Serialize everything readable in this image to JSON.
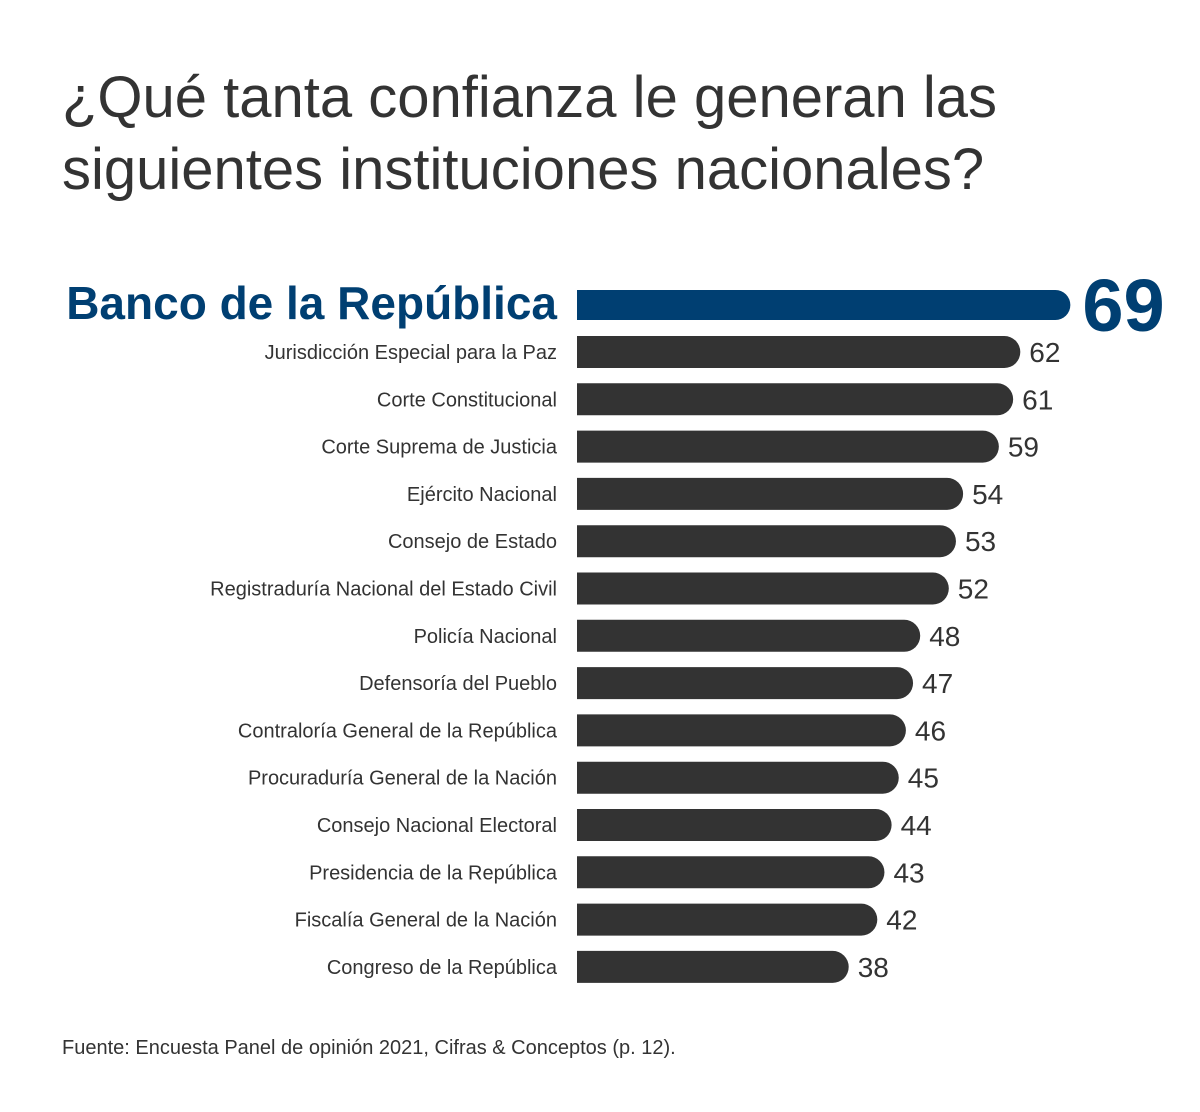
{
  "title": "¿Qué tanta confianza le generan las siguientes instituciones nacionales?",
  "source": "Fuente: Encuesta Panel de opinión 2021, Cifras & Conceptos (p. 12).",
  "colors": {
    "highlight": "#003f72",
    "bar": "#333333",
    "text": "#333333"
  },
  "chart_data": {
    "type": "bar",
    "orientation": "horizontal",
    "highlight_index": 0,
    "categories": [
      "Banco de la República",
      "Jurisdicción Especial para la Paz",
      "Corte Constitucional",
      "Corte Suprema de Justicia",
      "Ejército Nacional",
      "Consejo de Estado",
      "Registraduría Nacional del Estado Civil",
      "Policía Nacional",
      "Defensoría del Pueblo",
      "Contraloría General de la República",
      "Procuraduría General de la Nación",
      "Consejo Nacional Electoral",
      "Presidencia de la República",
      "Fiscalía General de la Nación",
      "Congreso de la República"
    ],
    "values": [
      69,
      62,
      61,
      59,
      54,
      53,
      52,
      48,
      47,
      46,
      45,
      44,
      43,
      42,
      38
    ],
    "value_labels": [
      "69",
      "62",
      "61",
      "59",
      "54",
      "53",
      "52",
      "48",
      "47",
      "46",
      "45",
      "44",
      "43",
      "42",
      "38"
    ],
    "grid": false
  }
}
